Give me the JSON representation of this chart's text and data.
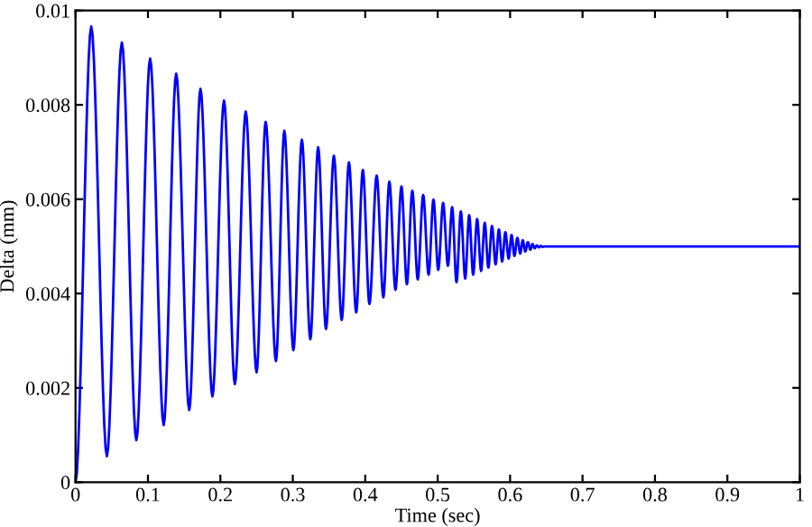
{
  "chart_data": {
    "type": "line",
    "xlabel": "Time (sec)",
    "ylabel": "Delta (mm)",
    "xlim": [
      0,
      1
    ],
    "ylim": [
      0,
      0.01
    ],
    "xticks": [
      0,
      0.1,
      0.2,
      0.3,
      0.4,
      0.5,
      0.6,
      0.7,
      0.8,
      0.9,
      1
    ],
    "yticks": [
      0,
      0.002,
      0.004,
      0.006,
      0.008,
      0.01
    ],
    "grid": false,
    "marker": "none",
    "line_style": "solid",
    "series": [
      {
        "color": "#0000ff",
        "x": [
          0,
          0.0217,
          0.0433,
          0.064,
          0.084,
          0.103,
          0.1217,
          0.139,
          0.157,
          0.1725,
          0.189,
          0.205,
          0.22,
          0.235,
          0.25,
          0.2625,
          0.2767,
          0.2883,
          0.3008,
          0.3125,
          0.3242,
          0.335,
          0.3458,
          0.3567,
          0.3675,
          0.3775,
          0.3875,
          0.3967,
          0.4058,
          0.4158,
          0.425,
          0.4333,
          0.4417,
          0.45,
          0.4575,
          0.465,
          0.4725,
          0.48,
          0.4875,
          0.4942,
          0.5008,
          0.5075,
          0.5142,
          0.52,
          0.526,
          0.532,
          0.538,
          0.5435,
          0.549,
          0.5545,
          0.56,
          0.565,
          0.57,
          0.575,
          0.58,
          0.5845,
          0.589,
          0.5935,
          0.598,
          0.602,
          0.606,
          0.61,
          0.614,
          0.6175,
          0.621,
          0.6245,
          0.628,
          0.631,
          0.634,
          0.637,
          0.64,
          0.6425,
          0.645,
          0.648,
          1
        ],
        "values": [
          0,
          0.00966,
          0.00055,
          0.00932,
          0.00089,
          0.00898,
          0.00121,
          0.00866,
          0.00153,
          0.00834,
          0.00182,
          0.00809,
          0.00208,
          0.00786,
          0.00233,
          0.00764,
          0.00257,
          0.00745,
          0.0028,
          0.00726,
          0.00303,
          0.0071,
          0.00325,
          0.00692,
          0.00344,
          0.00678,
          0.0036,
          0.00662,
          0.00378,
          0.0065,
          0.00392,
          0.00637,
          0.00408,
          0.00627,
          0.0042,
          0.00618,
          0.0043,
          0.00609,
          0.0044,
          0.00599,
          0.0045,
          0.00592,
          0.00459,
          0.00583,
          0.00424,
          0.00574,
          0.00432,
          0.00566,
          0.0044,
          0.00558,
          0.00448,
          0.0055,
          0.00455,
          0.00543,
          0.00462,
          0.00536,
          0.00468,
          0.0053,
          0.00474,
          0.00524,
          0.0048,
          0.00518,
          0.00485,
          0.00513,
          0.00489,
          0.00509,
          0.00493,
          0.00505,
          0.00496,
          0.00502,
          0.00498,
          0.00501,
          0.00499,
          0.005,
          0.005
        ]
      }
    ]
  }
}
